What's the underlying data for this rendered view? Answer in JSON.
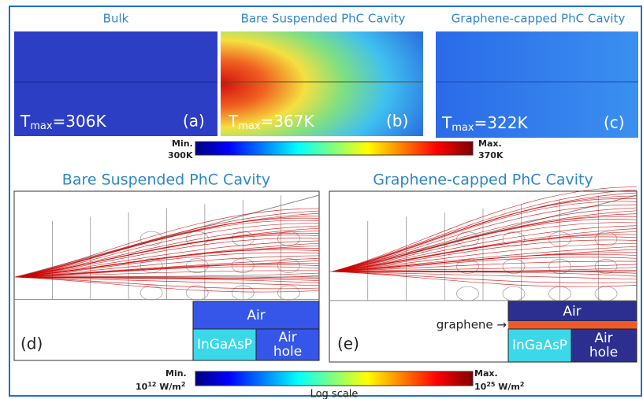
{
  "top": {
    "titles": [
      "Bulk",
      "Bare Suspended PhC Cavity",
      "Graphene-capped PhC Cavity"
    ],
    "tmax": [
      {
        "base": "T",
        "sub": "max",
        "rest": "=306K"
      },
      {
        "base": "T",
        "sub": "max",
        "rest": "=367K"
      },
      {
        "base": "T",
        "sub": "max",
        "rest": "=322K"
      }
    ],
    "letters": [
      "(a)",
      "(b)",
      "(c)"
    ],
    "colorbar": {
      "min_label": "Min.",
      "min_value": "300K",
      "max_label": "Max.",
      "max_value": "370K"
    }
  },
  "bottom": {
    "titles": [
      "Bare Suspended PhC Cavity",
      "Graphene-capped PhC Cavity"
    ],
    "letters": [
      "(d)",
      "(e)"
    ],
    "inset": {
      "air": "Air",
      "ingaasp": "InGaAsP",
      "air_hole": [
        "Air",
        "hole"
      ],
      "graphene": "graphene →"
    },
    "colorbar": {
      "min_label": "Min.",
      "min_value": {
        "base": "10",
        "sup": "12",
        "unit": " W/m",
        "unit_sup": "2"
      },
      "max_label": "Max.",
      "max_value": {
        "base": "10",
        "sup": "25",
        "unit": " W/m",
        "unit_sup": "2"
      },
      "scale": "Log scale"
    }
  }
}
